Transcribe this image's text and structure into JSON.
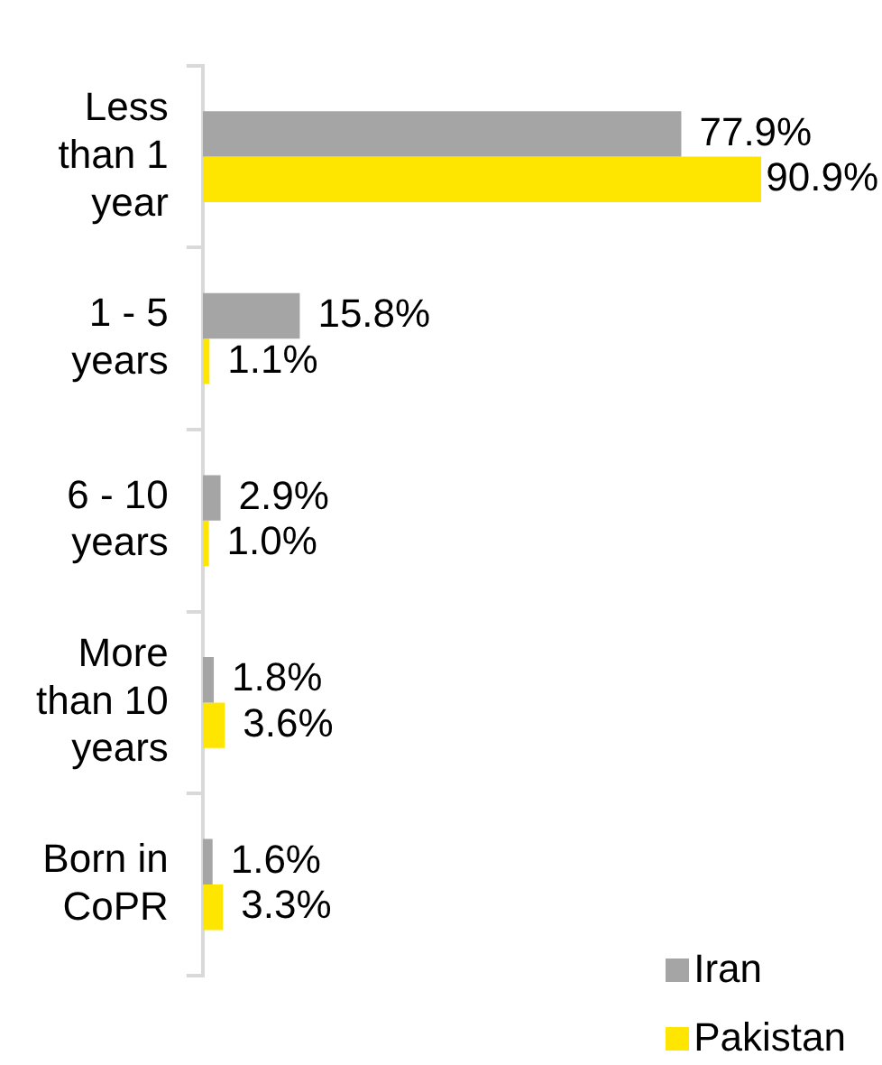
{
  "chart_data": {
    "type": "bar",
    "orientation": "horizontal",
    "categories": [
      "Less than 1 year",
      "1 - 5 years",
      "6 - 10 years",
      "More than 10 years",
      "Born in CoPR"
    ],
    "series": [
      {
        "name": "Iran",
        "color": "#a5a5a5",
        "values": [
          77.9,
          15.8,
          2.9,
          1.8,
          1.6
        ],
        "value_labels": [
          "77.9%",
          "15.8%",
          "2.9%",
          "1.8%",
          "1.6%"
        ]
      },
      {
        "name": "Pakistan",
        "color": "#ffe600",
        "values": [
          90.9,
          1.1,
          1.0,
          3.6,
          3.3
        ],
        "value_labels": [
          "90.9%",
          "1.1%",
          "1.0%",
          "3.6%",
          "3.3%"
        ]
      }
    ],
    "grid": false,
    "legend": "bottom right",
    "tick_labels": "y"
  }
}
